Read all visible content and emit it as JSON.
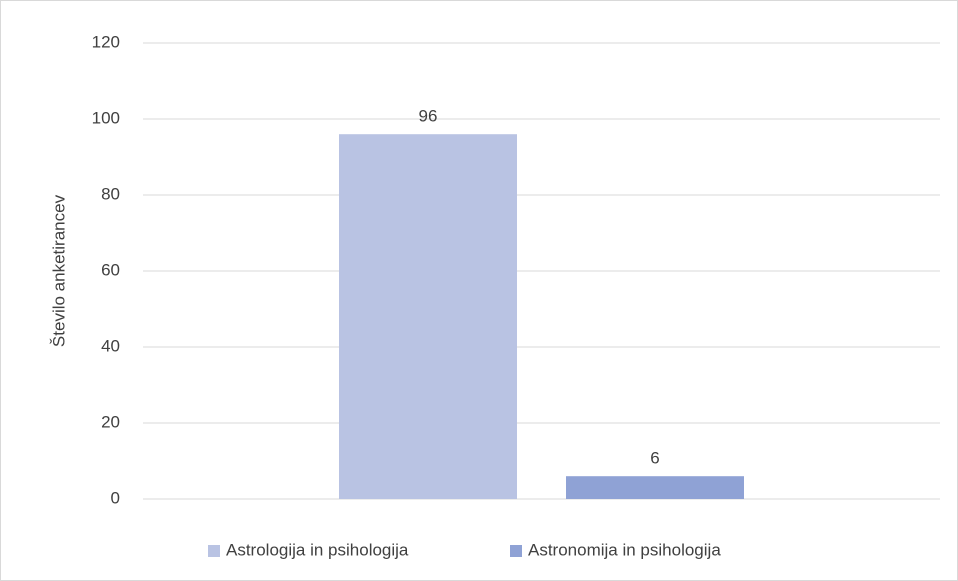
{
  "chart_data": {
    "type": "bar",
    "y_label": "Število anketirancev",
    "categories": [
      null
    ],
    "series": [
      {
        "name": "Astrologija in psihologija",
        "color": "#b9c3e3",
        "values": [
          96
        ]
      },
      {
        "name": "Astronomija in psihologija",
        "color": "#8fa2d5",
        "values": [
          6
        ]
      }
    ],
    "ylim": [
      0,
      120
    ],
    "yticks": [
      0,
      20,
      40,
      60,
      80,
      100,
      120
    ],
    "grid": true,
    "legend": "bottom"
  }
}
